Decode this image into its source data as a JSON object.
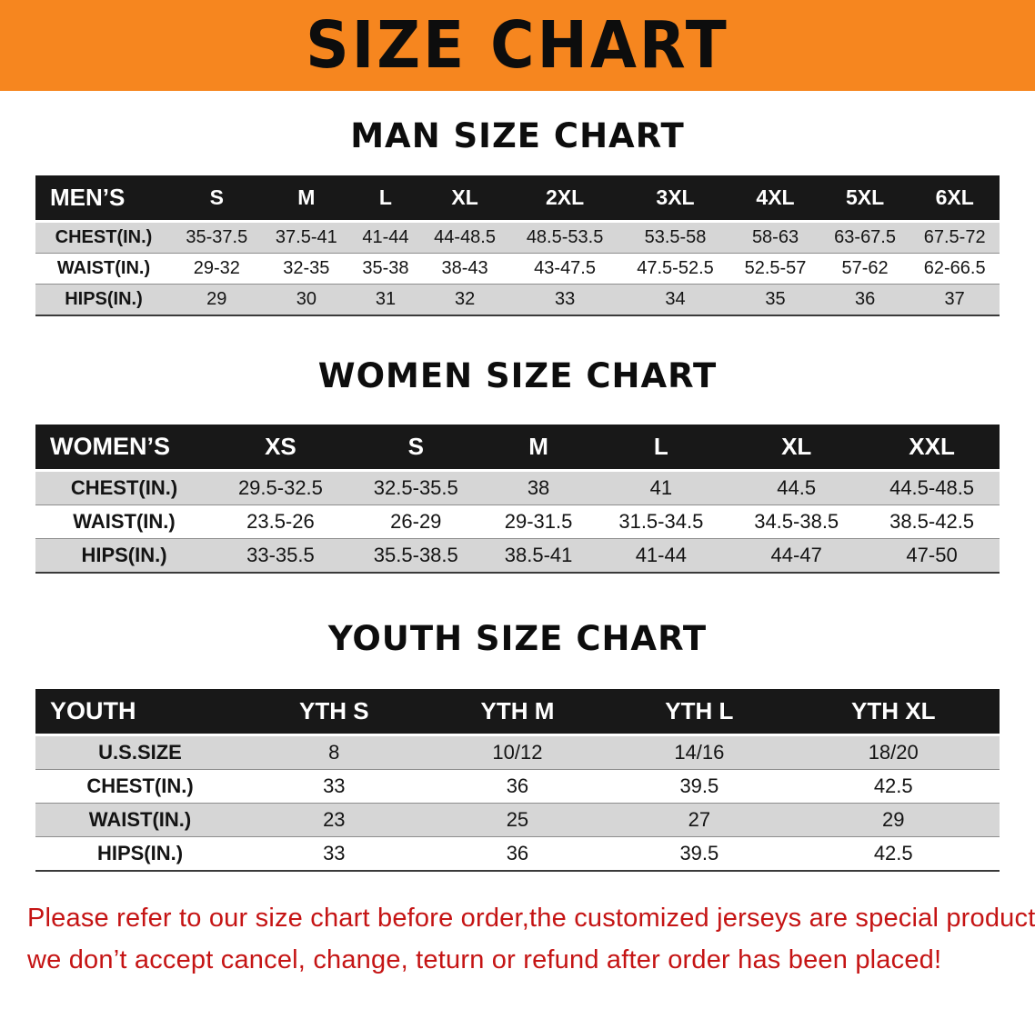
{
  "banner": {
    "title": "SIZE CHART"
  },
  "colors": {
    "banner_orange": "#f6861f",
    "footer_red": "#c51414",
    "header_black": "#181818",
    "row_shade": "#d6d6d6"
  },
  "chart_data": [
    {
      "type": "table",
      "title": "MAN SIZE CHART",
      "header_label": "MEN’S",
      "columns": [
        "S",
        "M",
        "L",
        "XL",
        "2XL",
        "3XL",
        "4XL",
        "5XL",
        "6XL"
      ],
      "rows": [
        {
          "label": "CHEST(IN.)",
          "values": [
            "35-37.5",
            "37.5-41",
            "41-44",
            "44-48.5",
            "48.5-53.5",
            "53.5-58",
            "58-63",
            "63-67.5",
            "67.5-72"
          ]
        },
        {
          "label": "WAIST(IN.)",
          "values": [
            "29-32",
            "32-35",
            "35-38",
            "38-43",
            "43-47.5",
            "47.5-52.5",
            "52.5-57",
            "57-62",
            "62-66.5"
          ]
        },
        {
          "label": "HIPS(IN.)",
          "values": [
            "29",
            "30",
            "31",
            "32",
            "33",
            "34",
            "35",
            "36",
            "37"
          ]
        }
      ]
    },
    {
      "type": "table",
      "title": "WOMEN SIZE CHART",
      "header_label": "WOMEN’S",
      "columns": [
        "XS",
        "S",
        "M",
        "L",
        "XL",
        "XXL"
      ],
      "rows": [
        {
          "label": "CHEST(IN.)",
          "values": [
            "29.5-32.5",
            "32.5-35.5",
            "38",
            "41",
            "44.5",
            "44.5-48.5"
          ]
        },
        {
          "label": "WAIST(IN.)",
          "values": [
            "23.5-26",
            "26-29",
            "29-31.5",
            "31.5-34.5",
            "34.5-38.5",
            "38.5-42.5"
          ]
        },
        {
          "label": "HIPS(IN.)",
          "values": [
            "33-35.5",
            "35.5-38.5",
            "38.5-41",
            "41-44",
            "44-47",
            "47-50"
          ]
        }
      ]
    },
    {
      "type": "table",
      "title": "YOUTH SIZE CHART",
      "header_label": "YOUTH",
      "columns": [
        "YTH S",
        "YTH M",
        "YTH L",
        "YTH XL"
      ],
      "rows": [
        {
          "label": "U.S.SIZE",
          "values": [
            "8",
            "10/12",
            "14/16",
            "18/20"
          ]
        },
        {
          "label": "CHEST(IN.)",
          "values": [
            "33",
            "36",
            "39.5",
            "42.5"
          ]
        },
        {
          "label": "WAIST(IN.)",
          "values": [
            "23",
            "25",
            "27",
            "29"
          ]
        },
        {
          "label": "HIPS(IN.)",
          "values": [
            "33",
            "36",
            "39.5",
            "42.5"
          ]
        }
      ]
    }
  ],
  "footer": {
    "lines": [
      "Please refer to our size chart before order,the customized jerseys are special products,",
      "we don’t accept cancel, change, teturn or refund after order has been placed!"
    ]
  }
}
